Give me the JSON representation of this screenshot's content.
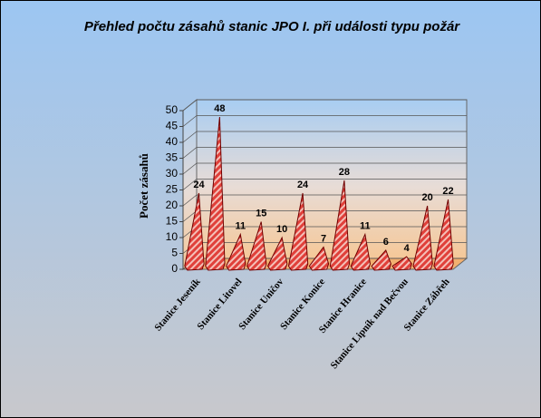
{
  "chart_data": {
    "type": "cone",
    "title": "Přehled počtu zásahů stanic JPO I. při události typu požár",
    "y_label": "Počet zásahů",
    "categories": [
      "Stanice Jeseník",
      null,
      "Stanice Litovel",
      null,
      "Stanice Uničov",
      null,
      "Stanice Konice",
      null,
      "Stanice Hranice",
      null,
      "Stanice Lipník nad Bečvou",
      null,
      "Stanice Zábřeh"
    ],
    "values": [
      24,
      48,
      11,
      15,
      10,
      24,
      7,
      28,
      11,
      6,
      4,
      20,
      22
    ],
    "color": "#e0403a",
    "ylim": [
      0,
      50
    ],
    "yticks": [
      0,
      5,
      10,
      15,
      20,
      25,
      30,
      35,
      40,
      45,
      50
    ],
    "grid": true
  }
}
